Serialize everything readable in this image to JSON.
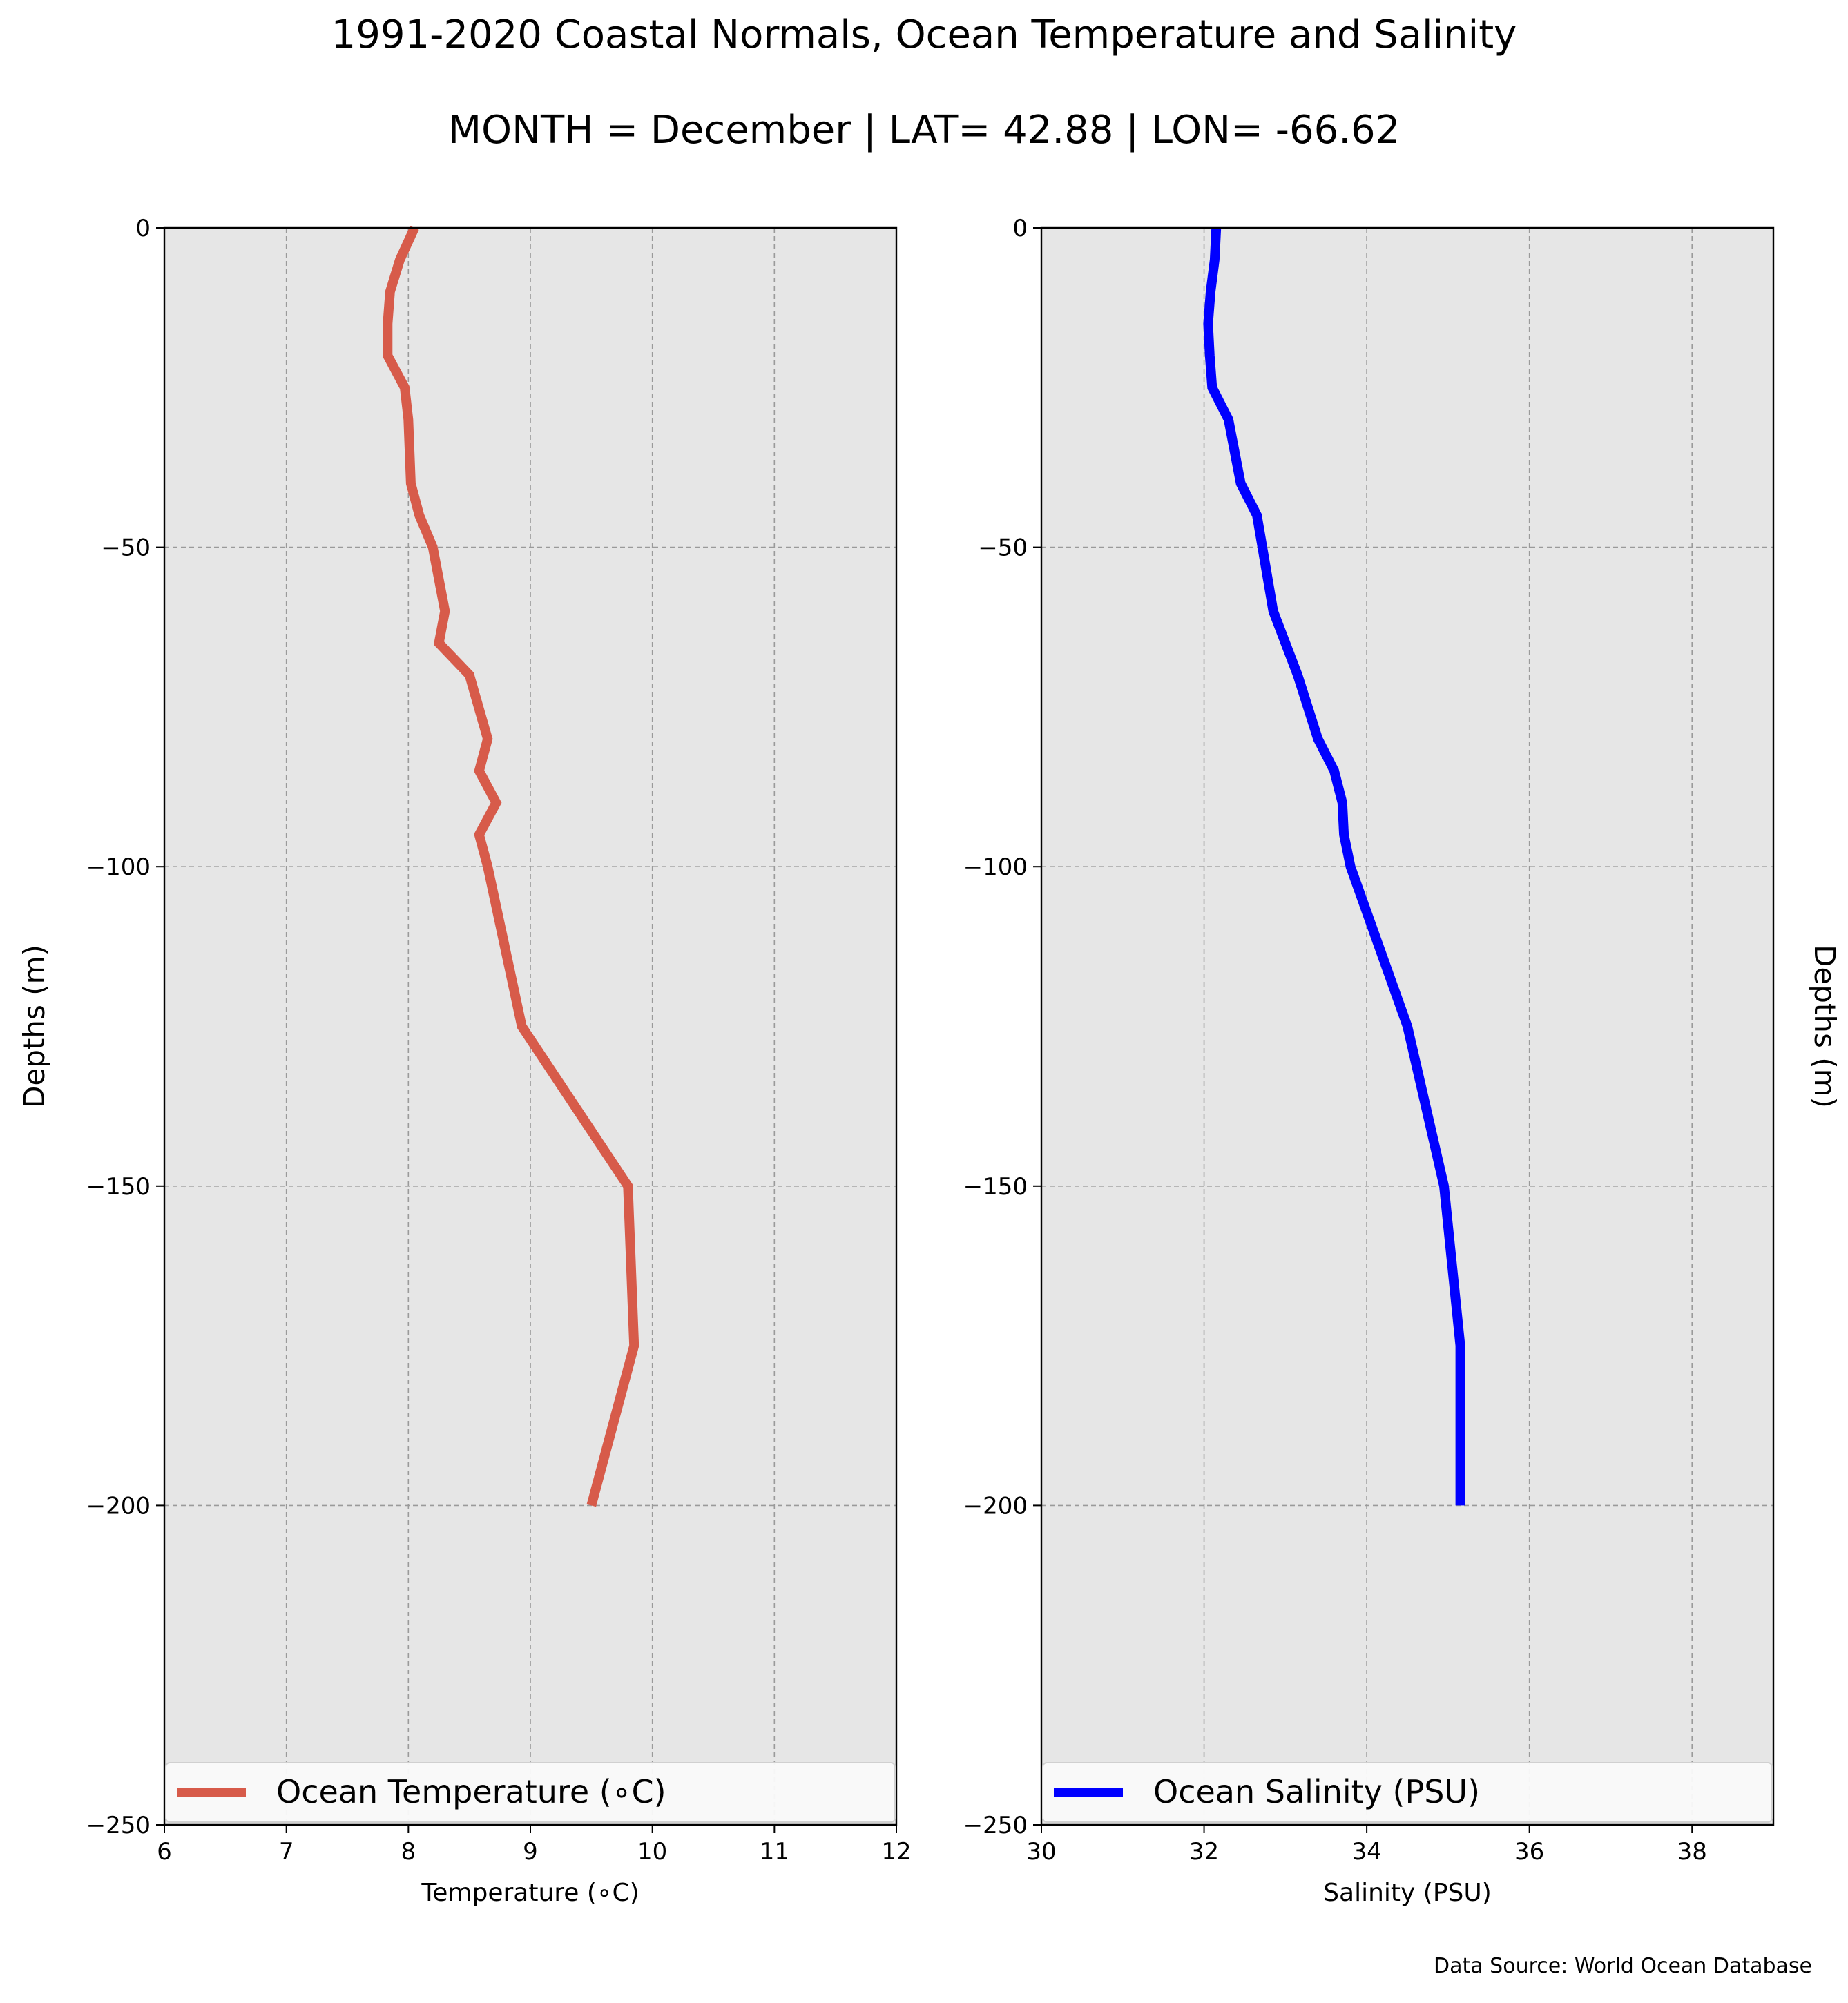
{
  "figure": {
    "title": "1991-2020 Coastal Normals, Ocean Temperature and Salinity",
    "subtitle": "MONTH = December | LAT= 42.88 | LON= -66.62",
    "source_note": "Data Source: World Ocean Database",
    "colors": {
      "temperature": "#d75b4a",
      "salinity": "#0000ff",
      "panel_bg": "#e6e6e6",
      "grid": "#9a9a9a"
    }
  },
  "chart_data": [
    {
      "type": "line",
      "xlabel": "Temperature (∘C)",
      "ylabel": "Depths (m)",
      "xlim": [
        6,
        12
      ],
      "ylim": [
        -250,
        0
      ],
      "xticks": [
        "6",
        "7",
        "8",
        "9",
        "10",
        "11",
        "12"
      ],
      "xtick_values": [
        6,
        7,
        8,
        9,
        10,
        11,
        12
      ],
      "yticks": [
        "0",
        "−50",
        "−100",
        "−150",
        "−200",
        "−250"
      ],
      "ytick_values": [
        0,
        -50,
        -100,
        -150,
        -200,
        -250
      ],
      "grid": true,
      "legend_position": "bottom",
      "series": [
        {
          "name": "Ocean Temperature (∘C)",
          "x": [
            8.05,
            7.93,
            7.85,
            7.83,
            7.83,
            7.97,
            8.0,
            8.01,
            8.02,
            8.02,
            8.09,
            8.2,
            8.25,
            8.3,
            8.25,
            8.5,
            8.65,
            8.58,
            8.72,
            8.58,
            8.65,
            8.93,
            9.8,
            9.85,
            9.5
          ],
          "y": [
            0,
            -5,
            -10,
            -15,
            -20,
            -25,
            -30,
            -35,
            -40,
            -40,
            -45,
            -50,
            -55,
            -60,
            -65,
            -70,
            -80,
            -85,
            -90,
            -95,
            -100,
            -125,
            -150,
            -175,
            -200
          ]
        }
      ]
    },
    {
      "type": "line",
      "xlabel": "Salinity (PSU)",
      "ylabel": "Depths (m)",
      "xlim": [
        30,
        39
      ],
      "ylim": [
        -250,
        0
      ],
      "xticks": [
        "30",
        "32",
        "34",
        "36",
        "38"
      ],
      "xtick_values": [
        30,
        32,
        34,
        36,
        38
      ],
      "yticks": [
        "0",
        "−50",
        "−100",
        "−150",
        "−200",
        "−250"
      ],
      "ytick_values": [
        0,
        -50,
        -100,
        -150,
        -200,
        -250
      ],
      "grid": true,
      "legend_position": "bottom",
      "series": [
        {
          "name": "Ocean Salinity (PSU)",
          "x": [
            32.15,
            32.13,
            32.08,
            32.05,
            32.07,
            32.1,
            32.3,
            32.45,
            32.65,
            32.85,
            33.15,
            33.4,
            33.6,
            33.7,
            33.72,
            33.8,
            34.5,
            34.95,
            35.15,
            35.15
          ],
          "y": [
            0,
            -5,
            -10,
            -15,
            -20,
            -25,
            -30,
            -40,
            -45,
            -60,
            -70,
            -80,
            -85,
            -90,
            -95,
            -100,
            -125,
            -150,
            -175,
            -200
          ]
        }
      ]
    }
  ]
}
